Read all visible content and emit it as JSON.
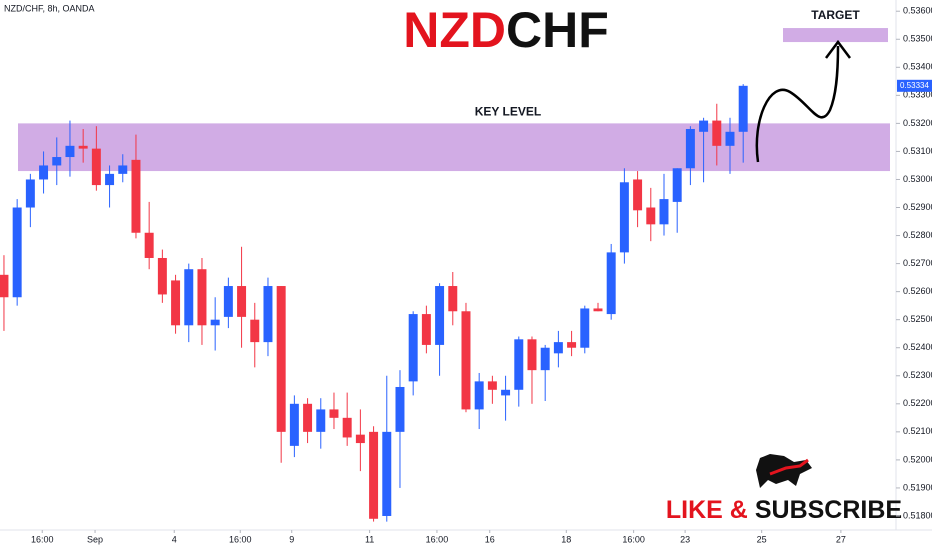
{
  "chart_data": {
    "type": "candlestick",
    "header": "NZD/CHF, 8h, OANDA",
    "title": [
      "NZD",
      "CHF"
    ],
    "title_colors": [
      "#e3141e",
      "#111111"
    ],
    "x": [
      0,
      1,
      2,
      3,
      4,
      5,
      6,
      7,
      8,
      9,
      10,
      11,
      12,
      13,
      14,
      15,
      16,
      17,
      18,
      19,
      20,
      21,
      22,
      23,
      24,
      25,
      26,
      27,
      28,
      29,
      30,
      31,
      32,
      33,
      34,
      35,
      36,
      37,
      38,
      39,
      40,
      41,
      42,
      43,
      44,
      45,
      46,
      47,
      48,
      49,
      50,
      51,
      52,
      53,
      54,
      55,
      56
    ],
    "open": [
      0.5266,
      0.5258,
      0.529,
      0.53,
      0.5305,
      0.5308,
      0.5312,
      0.5311,
      0.5298,
      0.5302,
      0.5307,
      0.5281,
      0.5272,
      0.5264,
      0.5248,
      0.5268,
      0.5248,
      0.5251,
      0.5262,
      0.525,
      0.5242,
      0.5262,
      0.5205,
      0.522,
      0.521,
      0.5218,
      0.5215,
      0.5209,
      0.521,
      0.518,
      0.521,
      0.5228,
      0.5252,
      0.5241,
      0.5262,
      0.5253,
      0.5218,
      0.5228,
      0.5223,
      0.5225,
      0.5243,
      0.5232,
      0.5238,
      0.5242,
      0.524,
      0.5254,
      0.5252,
      0.5274,
      0.53,
      0.529,
      0.5284,
      0.5292,
      0.5304,
      0.5317,
      0.5321,
      0.5312,
      0.5317
    ],
    "high": [
      0.5273,
      0.5293,
      0.5302,
      0.531,
      0.5315,
      0.5321,
      0.5318,
      0.5319,
      0.5305,
      0.5309,
      0.5316,
      0.5292,
      0.5275,
      0.5266,
      0.527,
      0.5272,
      0.5258,
      0.5265,
      0.5276,
      0.5256,
      0.5265,
      0.5262,
      0.5223,
      0.5222,
      0.5222,
      0.5224,
      0.5224,
      0.5218,
      0.5212,
      0.523,
      0.5232,
      0.5253,
      0.5255,
      0.5263,
      0.5267,
      0.5256,
      0.5231,
      0.523,
      0.523,
      0.5244,
      0.5244,
      0.5241,
      0.5246,
      0.5246,
      0.5255,
      0.5256,
      0.5277,
      0.5304,
      0.5303,
      0.5297,
      0.5302,
      0.5304,
      0.5319,
      0.5322,
      0.5327,
      0.5322,
      0.5334
    ],
    "low": [
      0.5246,
      0.5255,
      0.5283,
      0.5295,
      0.5298,
      0.5301,
      0.5306,
      0.5296,
      0.529,
      0.5299,
      0.5279,
      0.5268,
      0.5256,
      0.5245,
      0.5242,
      0.5241,
      0.5239,
      0.5247,
      0.524,
      0.5233,
      0.5237,
      0.5199,
      0.5201,
      0.5206,
      0.5204,
      0.5211,
      0.5205,
      0.5196,
      0.5178,
      0.5178,
      0.519,
      0.5223,
      0.5238,
      0.523,
      0.5248,
      0.5217,
      0.5211,
      0.522,
      0.5214,
      0.5219,
      0.522,
      0.5221,
      0.5233,
      0.5237,
      0.5238,
      0.5253,
      0.525,
      0.527,
      0.5283,
      0.5278,
      0.528,
      0.5281,
      0.5298,
      0.5299,
      0.5305,
      0.5302,
      0.5306
    ],
    "close": [
      0.5258,
      0.529,
      0.53,
      0.5305,
      0.5308,
      0.5312,
      0.5311,
      0.5298,
      0.5302,
      0.5305,
      0.5281,
      0.5272,
      0.5259,
      0.5248,
      0.5268,
      0.5248,
      0.525,
      0.5262,
      0.5251,
      0.5242,
      0.5262,
      0.521,
      0.522,
      0.521,
      0.5218,
      0.5215,
      0.5208,
      0.5206,
      0.5179,
      0.521,
      0.5226,
      0.5252,
      0.5241,
      0.5262,
      0.5253,
      0.5218,
      0.5228,
      0.5225,
      0.5225,
      0.5243,
      0.5232,
      0.524,
      0.5242,
      0.524,
      0.5254,
      0.5253,
      0.5274,
      0.5299,
      0.5289,
      0.5284,
      0.5293,
      0.5304,
      0.5318,
      0.5321,
      0.5312,
      0.5317,
      0.53334
    ],
    "up_color": "#2962ff",
    "down_color": "#f23645",
    "xlim": [
      -0.3,
      67.5
    ],
    "xticks": [
      {
        "value": 2.9,
        "label": "16:00"
      },
      {
        "value": 6.9,
        "label": "Sep"
      },
      {
        "value": 12.9,
        "label": "4"
      },
      {
        "value": 17.9,
        "label": "16:00"
      },
      {
        "value": 21.8,
        "label": "9"
      },
      {
        "value": 27.7,
        "label": "11"
      },
      {
        "value": 32.8,
        "label": "16:00"
      },
      {
        "value": 36.8,
        "label": "16"
      },
      {
        "value": 42.6,
        "label": "18"
      },
      {
        "value": 47.7,
        "label": "16:00"
      },
      {
        "value": 51.6,
        "label": "23"
      },
      {
        "value": 57.4,
        "label": "25"
      },
      {
        "value": 63.4,
        "label": "27"
      }
    ],
    "ylim": [
      0.5175,
      0.5364
    ],
    "yticks": [
      {
        "value": 0.518,
        "label": "0.51800"
      },
      {
        "value": 0.519,
        "label": "0.51900"
      },
      {
        "value": 0.52,
        "label": "0.52000"
      },
      {
        "value": 0.521,
        "label": "0.52100"
      },
      {
        "value": 0.522,
        "label": "0.52200"
      },
      {
        "value": 0.523,
        "label": "0.52300"
      },
      {
        "value": 0.524,
        "label": "0.52400"
      },
      {
        "value": 0.525,
        "label": "0.52500"
      },
      {
        "value": 0.526,
        "label": "0.52600"
      },
      {
        "value": 0.527,
        "label": "0.52700"
      },
      {
        "value": 0.528,
        "label": "0.52800"
      },
      {
        "value": 0.529,
        "label": "0.52900"
      },
      {
        "value": 0.53,
        "label": "0.53000"
      },
      {
        "value": 0.531,
        "label": "0.53100"
      },
      {
        "value": 0.532,
        "label": "0.53200"
      },
      {
        "value": 0.533,
        "label": "0.53300"
      },
      {
        "value": 0.534,
        "label": "0.53400"
      },
      {
        "value": 0.535,
        "label": "0.53500"
      },
      {
        "value": 0.536,
        "label": "0.53600"
      }
    ],
    "last_price": 0.53334,
    "zone_color": "#c99de0",
    "zones": [
      {
        "label": "KEY LEVEL",
        "range": [
          0.5303,
          0.532
        ]
      },
      {
        "label": "TARGET",
        "range": [
          0.5349,
          0.5354
        ]
      }
    ]
  },
  "logo": {
    "text": [
      "LIKE &",
      "SUBSCRIBE"
    ],
    "colors": [
      "#e3141e",
      "#111111"
    ]
  }
}
